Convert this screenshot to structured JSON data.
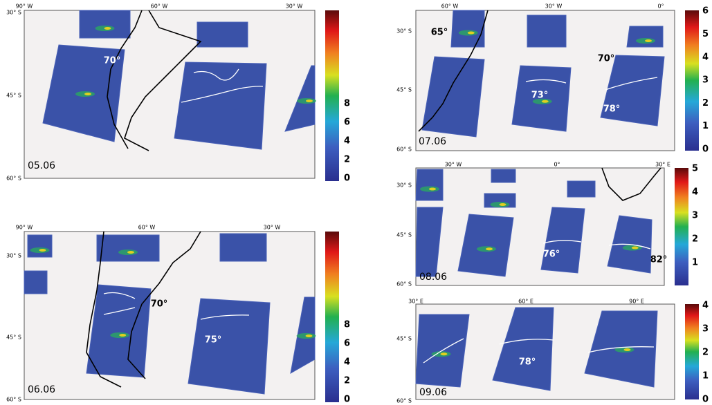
{
  "panels": [
    {
      "date": "05.06",
      "lon_labels": [
        "90° W",
        "60° W",
        "30° W"
      ],
      "lat_labels": [
        "30° S",
        "45° S",
        "60° S"
      ],
      "colorbar_ticks": [
        "0",
        "2",
        "4",
        "6",
        "8"
      ],
      "annotations": [
        "70°"
      ]
    },
    {
      "date": "06.06",
      "lon_labels": [
        "90° W",
        "60° W",
        "30° W"
      ],
      "lat_labels": [
        "30° S",
        "45° S",
        "60° S"
      ],
      "colorbar_ticks": [
        "0",
        "2",
        "4",
        "6",
        "8"
      ],
      "annotations": [
        "70°",
        "75°"
      ]
    },
    {
      "date": "07.06",
      "lon_labels": [
        "60° W",
        "30° W",
        "0°"
      ],
      "lat_labels": [
        "30° S",
        "45° S",
        "60° S"
      ],
      "colorbar_ticks": [
        "0",
        "1",
        "2",
        "3",
        "4",
        "5",
        "6"
      ],
      "annotations": [
        "65°",
        "70°",
        "73°",
        "78°"
      ]
    },
    {
      "date": "08.06",
      "lon_labels": [
        "30° W",
        "0°",
        "30° E"
      ],
      "lat_labels": [
        "30° S",
        "45° S",
        "60° S"
      ],
      "colorbar_ticks": [
        "1",
        "2",
        "3",
        "4",
        "5"
      ],
      "annotations": [
        "76°",
        "82°"
      ]
    },
    {
      "date": "09.06",
      "lon_labels": [
        "30° E",
        "60° E",
        "90° E"
      ],
      "lat_labels": [
        "45° S",
        "60° S"
      ],
      "colorbar_ticks": [
        "0",
        "1",
        "2",
        "3",
        "4"
      ],
      "annotations": [
        "78°"
      ]
    }
  ]
}
